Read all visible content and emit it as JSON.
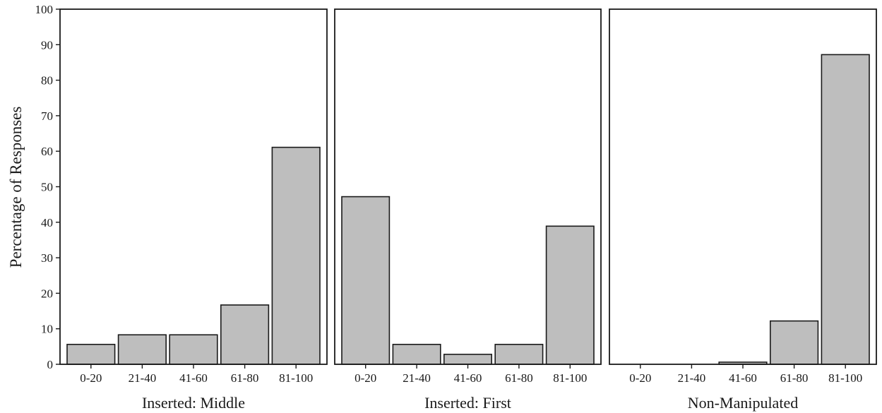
{
  "chart_data": {
    "type": "bar",
    "ylabel": "Percentage of Responses",
    "ylim": [
      0,
      100
    ],
    "yticks": [
      0,
      10,
      20,
      30,
      40,
      50,
      60,
      70,
      80,
      90,
      100
    ],
    "categories": [
      "0-20",
      "21-40",
      "41-60",
      "61-80",
      "81-100"
    ],
    "bar_color": "#bebebe",
    "grid": false,
    "panels": [
      {
        "label": "Inserted: Middle",
        "values": [
          5.6,
          8.3,
          8.3,
          16.7,
          61.1
        ]
      },
      {
        "label": "Inserted: First",
        "values": [
          47.2,
          5.6,
          2.8,
          5.6,
          38.9
        ]
      },
      {
        "label": "Non-Manipulated",
        "values": [
          0,
          0,
          0.6,
          12.2,
          87.2
        ]
      }
    ]
  }
}
